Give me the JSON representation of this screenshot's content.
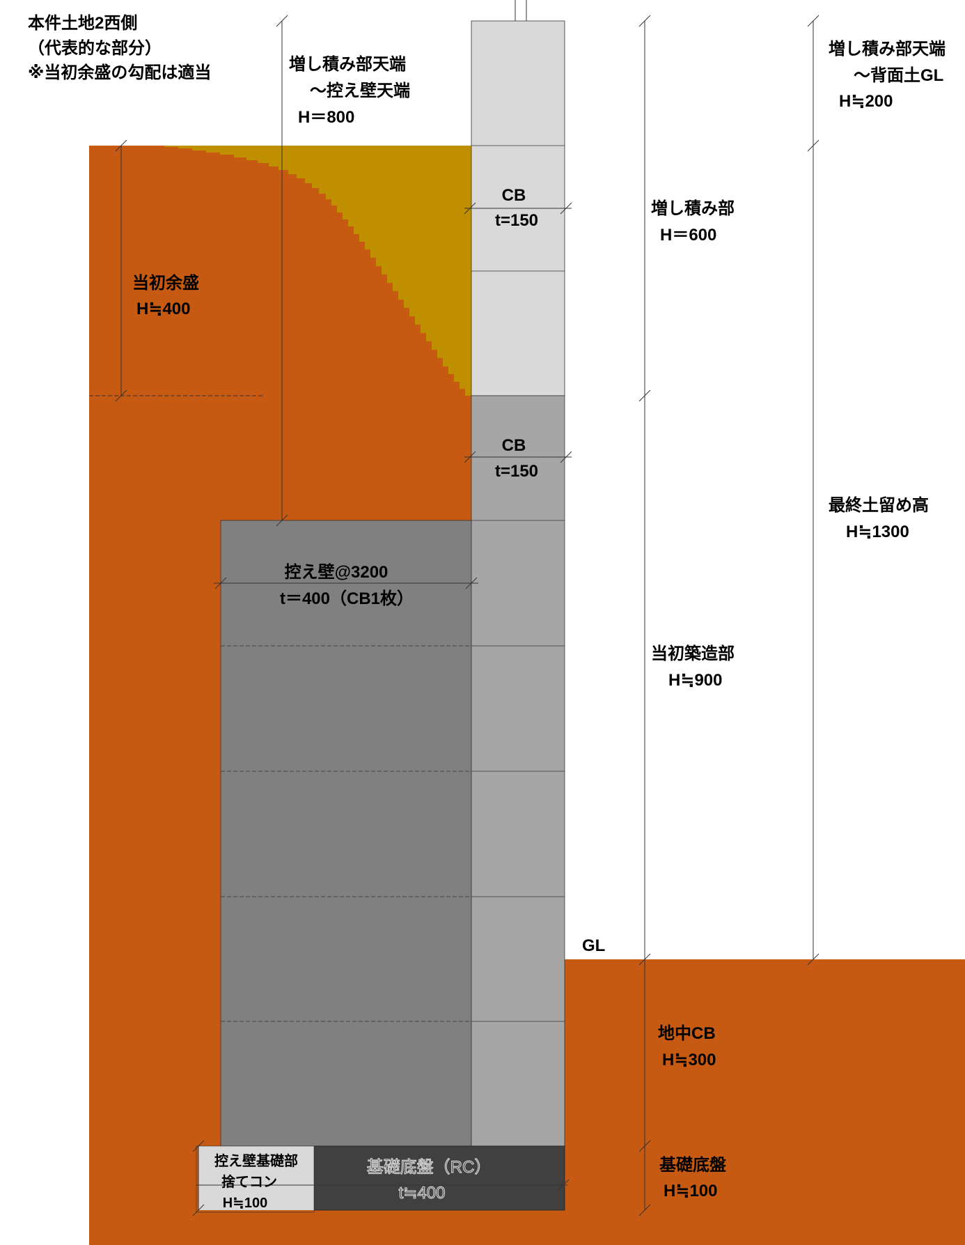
{
  "colors": {
    "soil": "#c65a12",
    "initial_fill": "#bf8f00",
    "cb_top": "#d9d9d9",
    "cb_mid": "#a6a6a6",
    "buttress": "#808080",
    "footing": "#404040",
    "leveling": "#d9d9d9"
  },
  "title_block": {
    "line1": "本件土地2西側",
    "line2": "（代表的な部分）",
    "line3": "※当初余盛の勾配は適当"
  },
  "labels": {
    "buttress_top_dim": {
      "line1": "増し積み部天端",
      "line2": "～控え壁天端",
      "line3": "H＝800"
    },
    "initial_fill": {
      "line1": "当初余盛",
      "line2": "H≒400"
    },
    "cb_upper": {
      "line1": "CB",
      "line2": "t=150"
    },
    "cb_lower": {
      "line1": "CB",
      "line2": "t=150"
    },
    "buttress": {
      "line1": "控え壁@3200",
      "line2": "t＝400（CB1枚）"
    },
    "footing_slab": {
      "line1": "基礎底盤（RC）",
      "line2": "t≒400"
    },
    "leveling_concrete": {
      "line1": "控え壁基礎部",
      "line2": "捨てコン",
      "line3": "H≒100"
    },
    "added_part": {
      "line1": "増し積み部",
      "line2": "H＝600"
    },
    "original_part": {
      "line1": "当初築造部",
      "line2": "H≒900"
    },
    "underground_cb": {
      "line1": "地中CB",
      "line2": "H≒300"
    },
    "base_slab": {
      "line1": "基礎底盤",
      "line2": "H≒100"
    },
    "top_to_back_gl": {
      "line1": "増し積み部天端",
      "line2": "～背面土GL",
      "line3": "H≒200"
    },
    "final_retaining_height": {
      "line1": "最終土留め高",
      "line2": "H≒1300"
    },
    "gl": "GL"
  }
}
